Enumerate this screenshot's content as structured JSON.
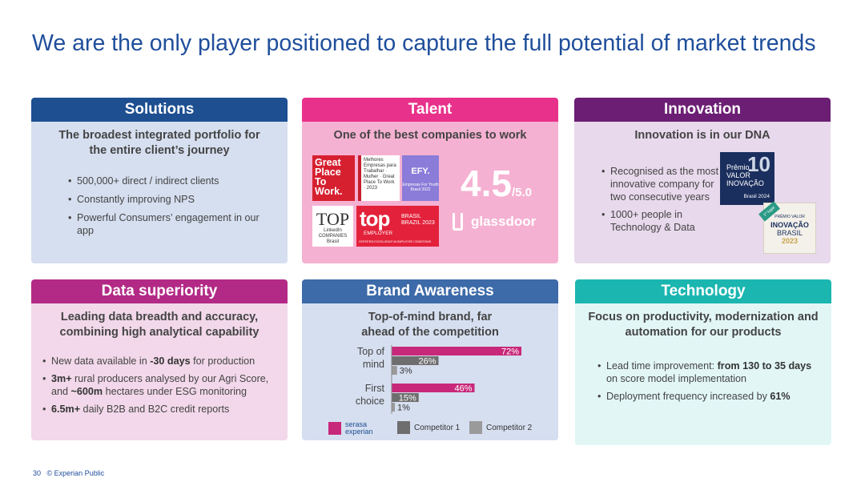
{
  "title": "We are the only player positioned to capture the full potential of market trends",
  "solutions": {
    "header": "Solutions",
    "subtitle": "The broadest integrated portfolio for the entire client’s journey",
    "bullets": [
      "500,000+ direct / indirect clients",
      "Constantly improving NPS",
      "Powerful Consumers’ engagement in our app"
    ]
  },
  "talent": {
    "header": "Talent",
    "subtitle": "One of the best companies to work",
    "gptw": "Great Place To Work.",
    "gptw_small": "Melhores Empresas para Trabalhar · Mulher · Great Place To Work · 2023",
    "efy": "EFY.",
    "efy_small": "Empresas For Youth Brasil 2022",
    "top_companies": "TOP",
    "top_companies_small": "LinkedIn COMPANIES Brasil",
    "top_employer": "top",
    "top_employer_em": "EMPLOYER",
    "top_employer_country": "BRASIL BRAZIL 2023",
    "top_employer_cert": "CERTIFIED EXCELLENCE IN EMPLOYEE CONDITIONS",
    "rating": "4.5",
    "rating_suffix": "/5.0",
    "glassdoor": "glassdoor"
  },
  "innovation": {
    "header": "Innovation",
    "subtitle": "Innovation is in our DNA",
    "bullets": [
      "Recognised as the most innovative company for two consecutive years",
      "1000+ people in Technology & Data"
    ],
    "badge1": {
      "line1": "Prêmio",
      "line2": "VALOR",
      "line3": "INOVAÇÃO",
      "number": "10",
      "year": "Brasil 2024"
    },
    "badge2": {
      "ribbon": "1º lugar",
      "line1": "PRÊMIO VALOR",
      "line2": "INOVAÇÃO",
      "line3": "BRASIL",
      "year": "2023"
    }
  },
  "data_superiority": {
    "header": "Data superiority",
    "subtitle": "Leading data breadth and accuracy, combining high analytical capability",
    "bullets": [
      {
        "pre": "New data available in ",
        "bold": "-30 days",
        "post": " for production"
      },
      {
        "pre": "",
        "bold": "3m+",
        "post": " rural producers analysed by our Agri Score, and ",
        "bold2": "~600m",
        "post2": " hectares under ESG monitoring"
      },
      {
        "pre": "",
        "bold": "6.5m+",
        "post": " daily B2B and B2C credit reports"
      }
    ]
  },
  "brand": {
    "header": "Brand Awareness",
    "subtitle": "Top-of-mind brand, far ahead of the competition"
  },
  "technology": {
    "header": "Technology",
    "subtitle": "Focus on productivity, modernization and automation for our products",
    "bullets": [
      {
        "pre": "Lead time improvement: ",
        "bold": "from 130 to 35 days",
        "post": " on score model implementation"
      },
      {
        "pre": "Deployment frequency increased by ",
        "bold": "61%",
        "post": ""
      }
    ]
  },
  "chart_data": {
    "type": "bar",
    "orientation": "horizontal",
    "categories": [
      "Top of mind",
      "First choice"
    ],
    "series": [
      {
        "name": "serasa experian",
        "values": [
          72,
          46
        ],
        "color": "#c8287a"
      },
      {
        "name": "Competitor 1",
        "values": [
          26,
          15
        ],
        "color": "#6e6e6e"
      },
      {
        "name": "Competitor 2",
        "values": [
          3,
          1
        ],
        "color": "#9a9a9a"
      }
    ],
    "value_suffix": "%",
    "xlim": [
      0,
      72
    ],
    "legend": "bottom"
  },
  "footer": {
    "page": "30",
    "text": "© Experian Public"
  }
}
